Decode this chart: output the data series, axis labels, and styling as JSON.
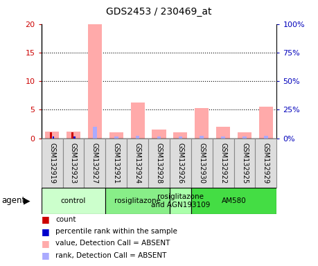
{
  "title": "GDS2453 / 230469_at",
  "samples": [
    "GSM132919",
    "GSM132923",
    "GSM132927",
    "GSM132921",
    "GSM132924",
    "GSM132928",
    "GSM132926",
    "GSM132930",
    "GSM132922",
    "GSM132925",
    "GSM132929"
  ],
  "pink_bars": [
    1.2,
    1.2,
    20.0,
    1.0,
    6.2,
    1.5,
    1.1,
    5.3,
    2.0,
    1.1,
    5.5
  ],
  "blue_bars": [
    0.3,
    0.3,
    2.0,
    0.3,
    0.5,
    0.3,
    0.3,
    0.5,
    0.3,
    0.3,
    0.5
  ],
  "red_bars": [
    1.0,
    1.0,
    0.0,
    0.0,
    0.0,
    0.0,
    0.0,
    0.0,
    0.0,
    0.0,
    0.0
  ],
  "dark_blue_bars": [
    0.3,
    0.3,
    0.0,
    0.0,
    0.0,
    0.0,
    0.0,
    0.0,
    0.0,
    0.0,
    0.0
  ],
  "agent_groups": [
    {
      "label": "control",
      "start": 0,
      "end": 3,
      "color": "#ccffcc"
    },
    {
      "label": "rosiglitazone",
      "start": 3,
      "end": 6,
      "color": "#88ee88"
    },
    {
      "label": "rosiglitazone\nand AGN193109",
      "start": 6,
      "end": 7,
      "color": "#aaffaa"
    },
    {
      "label": "AM580",
      "start": 7,
      "end": 11,
      "color": "#44dd44"
    }
  ],
  "group_boundaries": [
    3,
    6,
    7
  ],
  "ylim_left": [
    0,
    20
  ],
  "ylim_right": [
    0,
    100
  ],
  "yticks_left": [
    0,
    5,
    10,
    15,
    20
  ],
  "yticks_right": [
    0,
    25,
    50,
    75,
    100
  ],
  "ytick_labels_left": [
    "0",
    "5",
    "10",
    "15",
    "20"
  ],
  "ytick_labels_right": [
    "0%",
    "25%",
    "50%",
    "75%",
    "100%"
  ],
  "legend_items": [
    {
      "label": "count",
      "color": "#cc0000"
    },
    {
      "label": "percentile rank within the sample",
      "color": "#0000cc"
    },
    {
      "label": "value, Detection Call = ABSENT",
      "color": "#ffaaaa"
    },
    {
      "label": "rank, Detection Call = ABSENT",
      "color": "#aaaaff"
    }
  ],
  "agent_label": "agent",
  "background_color": "#ffffff",
  "tick_label_color_left": "#cc0000",
  "tick_label_color_right": "#0000bb",
  "cell_bg_color": "#dddddd",
  "cell_border_color": "#888888"
}
